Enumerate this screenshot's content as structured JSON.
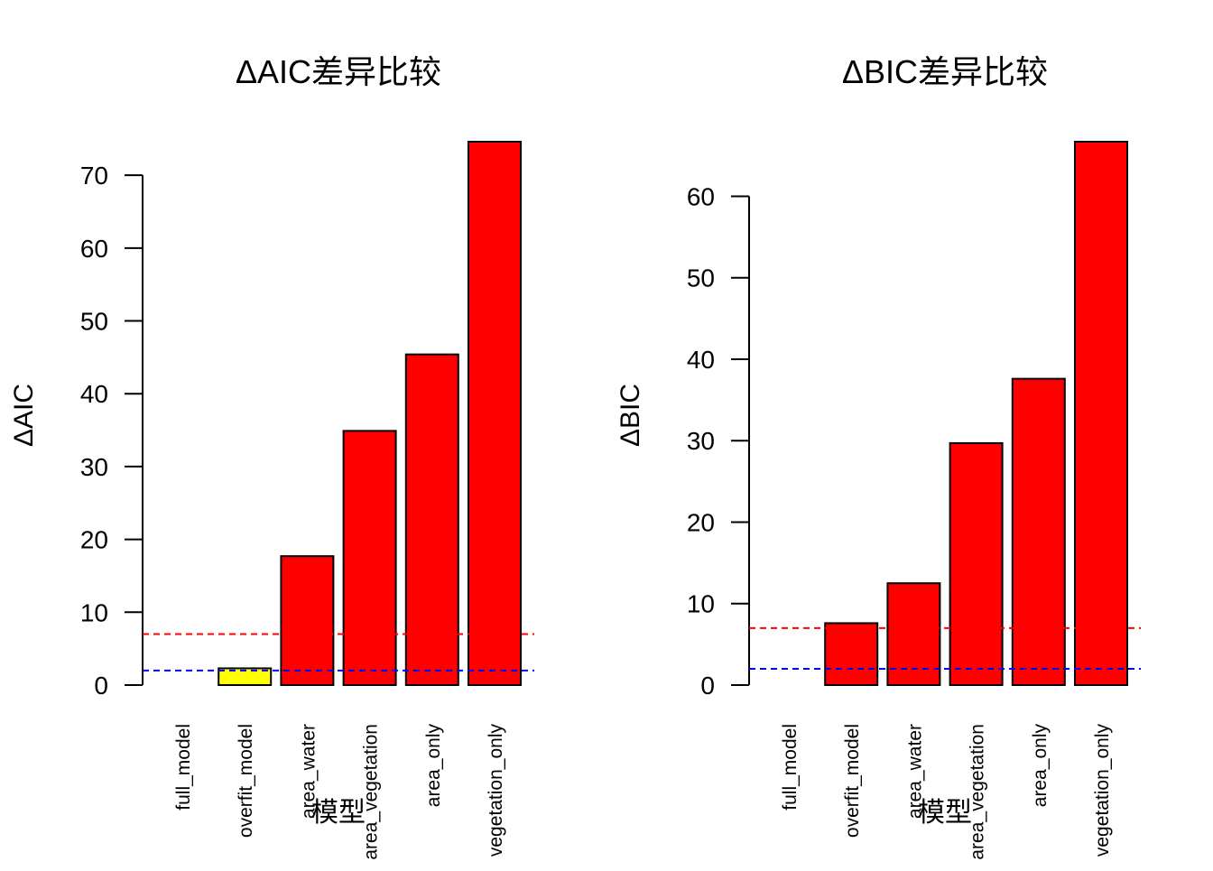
{
  "chart_data": [
    {
      "type": "bar",
      "title": "ΔAIC差异比较",
      "xlabel": "模型",
      "ylabel": "ΔAIC",
      "categories": [
        "full_model",
        "overfit_model",
        "area_water",
        "area_vegetation",
        "area_only",
        "vegetation_only"
      ],
      "values": [
        0,
        2.3,
        17.7,
        34.9,
        45.4,
        74.6
      ],
      "bar_colors": [
        "#ffffff",
        "#ffff00",
        "#ff0000",
        "#ff0000",
        "#ff0000",
        "#ff0000"
      ],
      "yticks": [
        0,
        10,
        20,
        30,
        40,
        50,
        60,
        70
      ],
      "ylim": [
        0,
        74.6
      ],
      "reference_lines": [
        {
          "value": 7,
          "color": "#ff0000",
          "style": "dashed"
        },
        {
          "value": 2,
          "color": "#0000ff",
          "style": "dashed"
        }
      ],
      "grid": false
    },
    {
      "type": "bar",
      "title": "ΔBIC差异比较",
      "xlabel": "模型",
      "ylabel": "ΔBIC",
      "categories": [
        "full_model",
        "overfit_model",
        "area_water",
        "area_vegetation",
        "area_only",
        "vegetation_only"
      ],
      "values": [
        0,
        7.6,
        12.5,
        29.7,
        37.6,
        66.7
      ],
      "bar_colors": [
        "#ffffff",
        "#ff0000",
        "#ff0000",
        "#ff0000",
        "#ff0000",
        "#ff0000"
      ],
      "yticks": [
        0,
        10,
        20,
        30,
        40,
        50,
        60
      ],
      "ylim": [
        0,
        66.7
      ],
      "reference_lines": [
        {
          "value": 7,
          "color": "#ff0000",
          "style": "dashed"
        },
        {
          "value": 2,
          "color": "#0000ff",
          "style": "dashed"
        }
      ],
      "grid": false
    }
  ]
}
